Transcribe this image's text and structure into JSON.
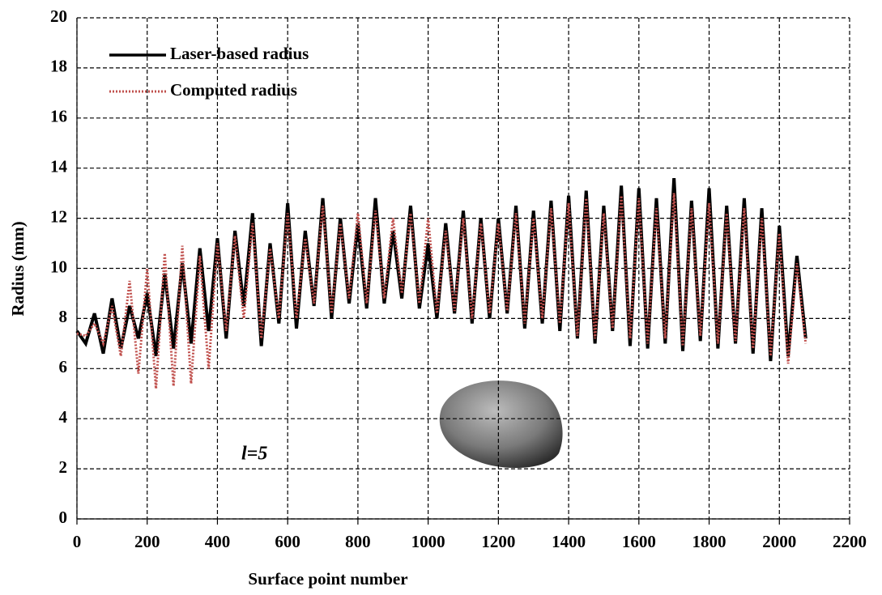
{
  "chart_data": {
    "type": "line",
    "xlabel": "Surface point number",
    "ylabel": "Radius (mm)",
    "annotation": "l=5",
    "xlim": [
      0,
      2200
    ],
    "xticks": [
      0,
      200,
      400,
      600,
      800,
      1000,
      1200,
      1400,
      1600,
      1800,
      2000,
      2200
    ],
    "ylim": [
      0,
      20
    ],
    "yticks": [
      0,
      2,
      4,
      6,
      8,
      10,
      12,
      14,
      16,
      18,
      20
    ],
    "grid": true,
    "legend": "upper left",
    "x": [
      0,
      25,
      50,
      75,
      100,
      125,
      150,
      175,
      200,
      225,
      250,
      275,
      300,
      325,
      350,
      375,
      400,
      425,
      450,
      475,
      500,
      525,
      550,
      575,
      600,
      625,
      650,
      675,
      700,
      725,
      750,
      775,
      800,
      825,
      850,
      875,
      900,
      925,
      950,
      975,
      1000,
      1025,
      1050,
      1075,
      1100,
      1125,
      1150,
      1175,
      1200,
      1225,
      1250,
      1275,
      1300,
      1325,
      1350,
      1375,
      1400,
      1425,
      1450,
      1475,
      1500,
      1525,
      1550,
      1575,
      1600,
      1625,
      1650,
      1675,
      1700,
      1725,
      1750,
      1775,
      1800,
      1825,
      1850,
      1875,
      1900,
      1925,
      1950,
      1975,
      2000,
      2025,
      2050,
      2075
    ],
    "series": [
      {
        "name": "Laser-based radius",
        "color": "#000000",
        "style": "solid",
        "values": [
          7.5,
          7.0,
          8.2,
          6.6,
          8.8,
          6.8,
          8.5,
          7.2,
          9.0,
          6.5,
          9.8,
          6.8,
          10.2,
          7.0,
          10.8,
          7.5,
          11.2,
          7.2,
          11.5,
          8.5,
          12.2,
          6.9,
          11.0,
          7.8,
          12.6,
          7.6,
          11.5,
          8.5,
          12.8,
          8.0,
          12.0,
          8.6,
          11.8,
          8.4,
          12.8,
          8.6,
          11.5,
          8.8,
          12.5,
          8.4,
          11.0,
          8.0,
          11.8,
          8.2,
          12.3,
          7.8,
          12.0,
          8.0,
          12.0,
          8.2,
          12.5,
          7.6,
          12.3,
          7.8,
          12.7,
          7.5,
          12.9,
          7.2,
          13.1,
          7.0,
          12.5,
          7.5,
          13.3,
          6.9,
          13.2,
          6.8,
          12.8,
          7.0,
          13.6,
          6.7,
          12.7,
          7.1,
          13.2,
          6.8,
          12.5,
          7.0,
          12.8,
          6.6,
          12.4,
          6.3,
          11.7,
          6.5,
          10.5,
          7.2
        ]
      },
      {
        "name": "Computed radius",
        "color": "#c0504d",
        "style": "dotted",
        "values": [
          7.4,
          7.3,
          7.8,
          7.0,
          8.5,
          6.5,
          9.5,
          5.8,
          10.0,
          5.2,
          10.6,
          5.3,
          10.9,
          5.4,
          10.5,
          6.0,
          11.0,
          7.5,
          11.3,
          8.0,
          11.8,
          7.2,
          10.8,
          8.0,
          12.2,
          8.0,
          11.2,
          8.6,
          12.5,
          8.2,
          11.8,
          8.8,
          12.2,
          8.6,
          12.3,
          8.8,
          12.0,
          9.0,
          12.2,
          8.6,
          12.0,
          8.2,
          11.5,
          8.3,
          12.0,
          8.0,
          11.8,
          8.2,
          11.8,
          8.3,
          12.2,
          7.8,
          12.0,
          8.0,
          12.4,
          7.8,
          12.6,
          7.3,
          12.8,
          7.2,
          12.2,
          7.6,
          12.9,
          7.2,
          12.8,
          7.0,
          12.4,
          7.2,
          13.0,
          6.9,
          12.4,
          7.3,
          12.6,
          7.0,
          12.2,
          7.1,
          12.4,
          6.8,
          12.0,
          6.5,
          11.4,
          6.2,
          10.2,
          7.0
        ]
      }
    ]
  }
}
